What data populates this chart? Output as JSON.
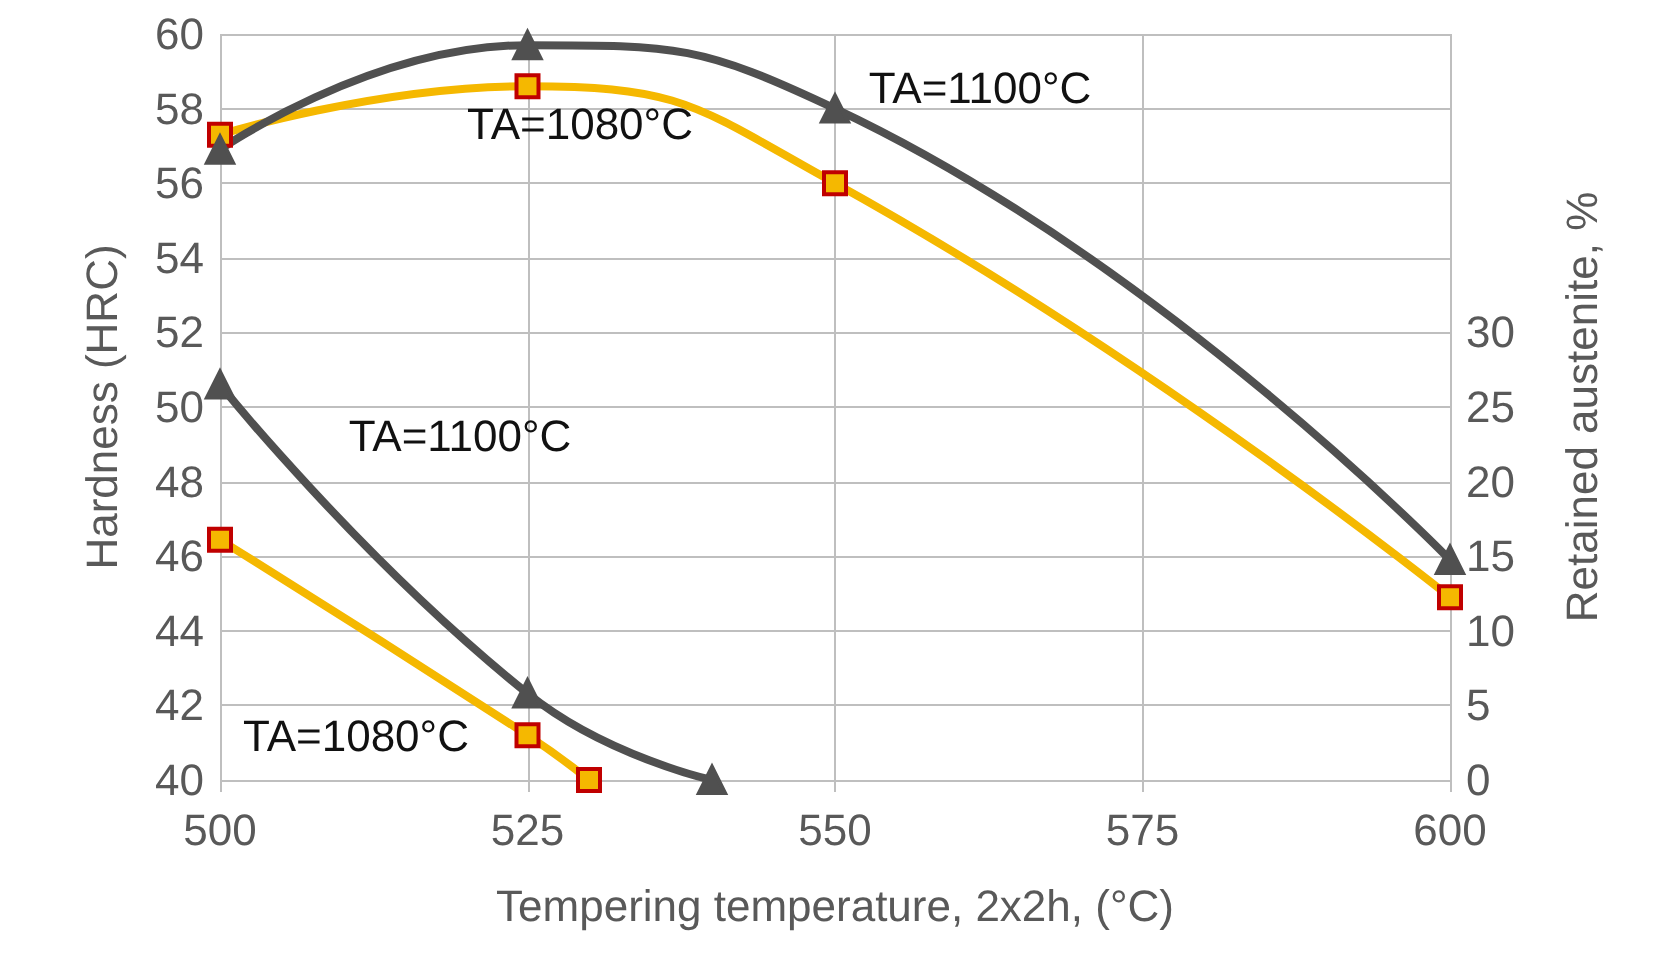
{
  "chart_data": {
    "type": "line",
    "xlabel": "Tempering temperature, 2x2h, (°C)",
    "ylabel": "Hardness (HRC)",
    "y2label": "Retained austenite, %",
    "xlim": [
      500,
      600
    ],
    "xticks": [
      500,
      525,
      550,
      575,
      600
    ],
    "ylim": [
      40,
      60
    ],
    "yticks": [
      40,
      42,
      44,
      46,
      48,
      50,
      52,
      54,
      56,
      58,
      60
    ],
    "y2lim": [
      0,
      50
    ],
    "y2ticks": [
      0,
      5,
      10,
      15,
      20,
      25,
      30
    ],
    "grid": true,
    "series": [
      {
        "color": "#f5b800",
        "marker": "square",
        "x": [
          500,
          525,
          550,
          600
        ],
        "values": [
          57.3,
          58.6,
          56.0,
          44.9
        ]
      },
      {
        "color": "#505050",
        "marker": "triangle",
        "x": [
          500,
          525,
          550,
          600
        ],
        "values": [
          56.9,
          59.7,
          58.0,
          45.9
        ]
      },
      {
        "color": "#f5b800",
        "marker": "square",
        "axis": "y2",
        "x": [
          500,
          525,
          530
        ],
        "values": [
          16.1,
          3.0,
          0
        ]
      },
      {
        "color": "#505050",
        "marker": "triangle",
        "axis": "y2",
        "x": [
          500,
          525,
          540
        ],
        "values": [
          26.5,
          5.8,
          0
        ]
      }
    ],
    "annotations": [
      "TA=1080°C",
      "TA=1100°C",
      "TA=1100°C",
      "TA=1080°C"
    ]
  }
}
